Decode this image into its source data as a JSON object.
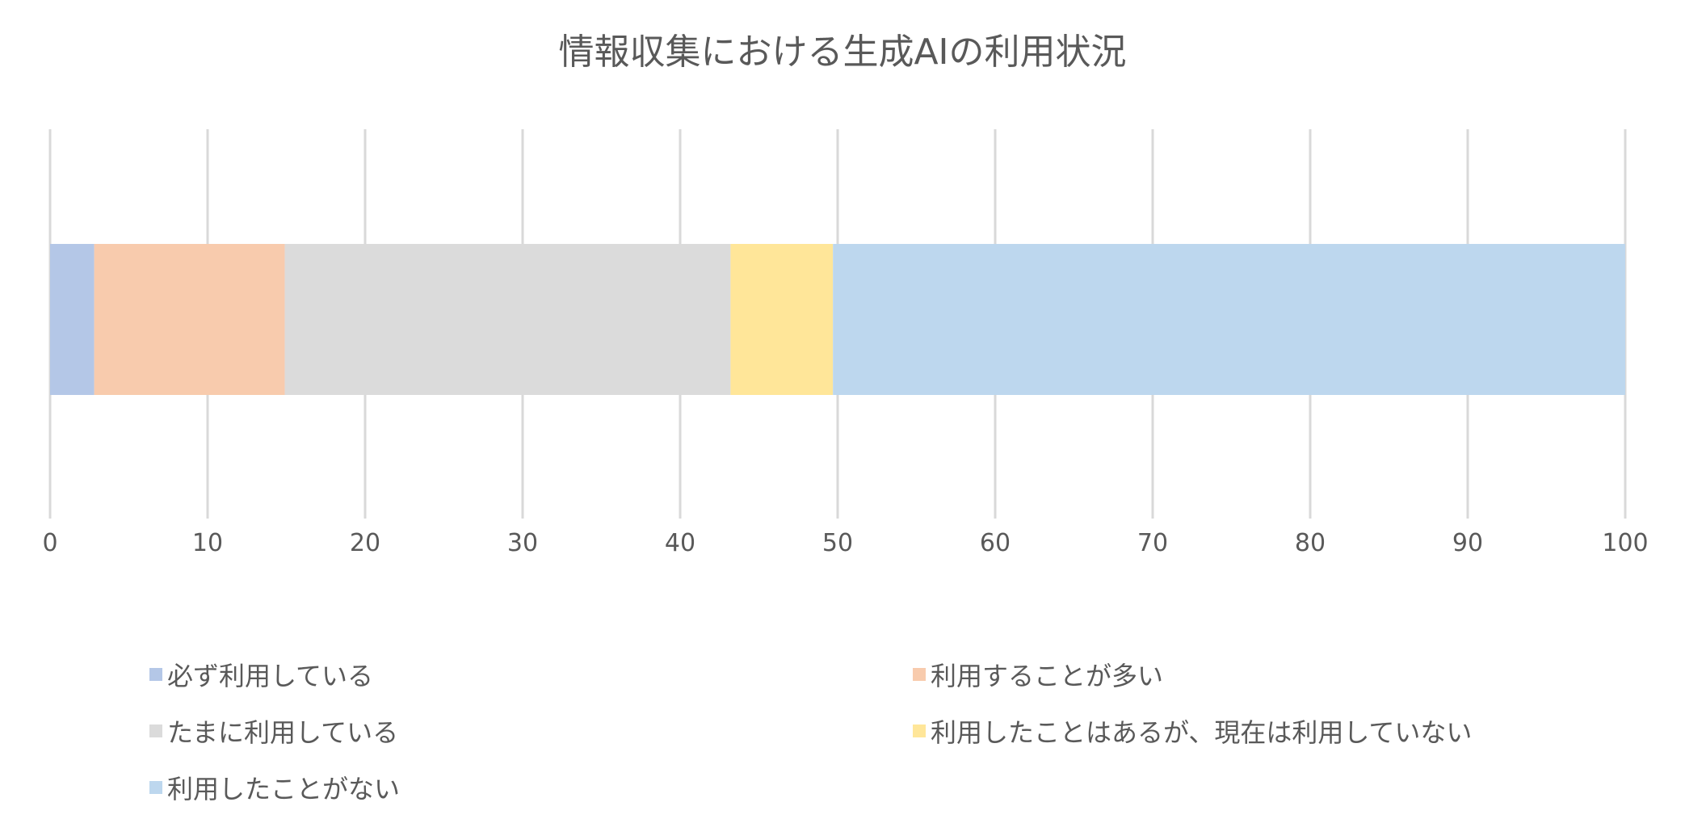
{
  "chart_data": {
    "type": "bar",
    "orientation": "horizontal",
    "stacked": true,
    "title": "情報収集における生成AIの利用状況",
    "categories": [
      ""
    ],
    "series": [
      {
        "name": "必ず利用している",
        "values": [
          2.8
        ],
        "color": "#b4c7e7"
      },
      {
        "name": "利用することが多い",
        "values": [
          12.1
        ],
        "color": "#f8cbad"
      },
      {
        "name": "たまに利用している",
        "values": [
          28.3
        ],
        "color": "#dbdbdb"
      },
      {
        "name": "利用したことはあるが、現在は利用していない",
        "values": [
          6.5
        ],
        "color": "#ffe699"
      },
      {
        "name": "利用したことがない",
        "values": [
          50.3
        ],
        "color": "#bdd7ee"
      }
    ],
    "xlim": [
      0,
      100
    ],
    "xticks": [
      "0",
      "10",
      "20",
      "30",
      "40",
      "50",
      "60",
      "70",
      "80",
      "90",
      "100"
    ],
    "xlabel": "",
    "ylabel": "",
    "grid": true,
    "gridline_color": "#d9d9d9",
    "legend_position": "bottom"
  }
}
